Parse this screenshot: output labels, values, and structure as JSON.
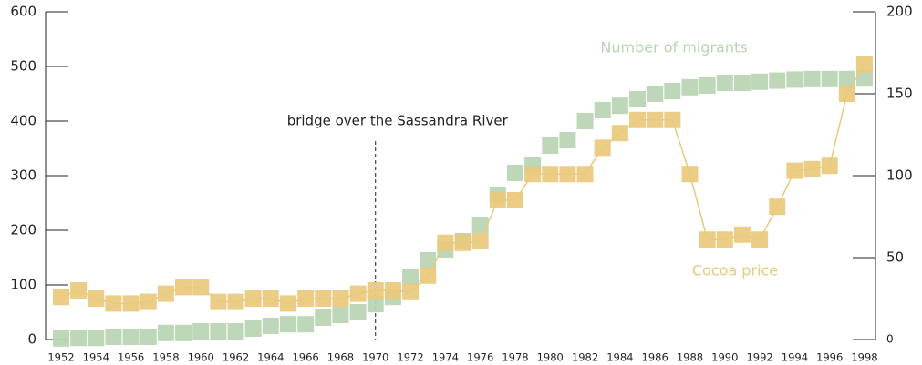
{
  "chart_data": {
    "type": "scatter",
    "x": [
      1952,
      1953,
      1954,
      1955,
      1956,
      1957,
      1958,
      1959,
      1960,
      1961,
      1962,
      1963,
      1964,
      1965,
      1966,
      1967,
      1968,
      1969,
      1970,
      1971,
      1972,
      1973,
      1974,
      1975,
      1976,
      1977,
      1978,
      1979,
      1980,
      1981,
      1982,
      1983,
      1984,
      1985,
      1986,
      1987,
      1988,
      1989,
      1990,
      1991,
      1992,
      1993,
      1994,
      1995,
      1996,
      1997,
      1998
    ],
    "xlim": [
      1952,
      1998
    ],
    "xticks": [
      1952,
      1954,
      1956,
      1958,
      1960,
      1962,
      1964,
      1966,
      1968,
      1970,
      1972,
      1974,
      1976,
      1978,
      1980,
      1982,
      1984,
      1986,
      1988,
      1990,
      1992,
      1994,
      1996,
      1998
    ],
    "ylim": [
      0,
      600
    ],
    "yticks": [
      0,
      100,
      200,
      300,
      400,
      500,
      600
    ],
    "y2lim": [
      0,
      200
    ],
    "y2ticks": [
      0,
      50,
      100,
      150,
      200
    ],
    "series": [
      {
        "name": "Number of migrants",
        "color": "#b8d4b3",
        "values": [
          2,
          3,
          3,
          5,
          5,
          5,
          12,
          12,
          15,
          15,
          15,
          20,
          25,
          28,
          28,
          40,
          45,
          50,
          65,
          78,
          115,
          145,
          165,
          180,
          210,
          265,
          305,
          320,
          355,
          365,
          400,
          420,
          428,
          440,
          450,
          455,
          462,
          465,
          470,
          470,
          472,
          474,
          476,
          477,
          477,
          477,
          478
        ]
      },
      {
        "name": "Cocoa price",
        "color": "#e9c97c",
        "axis": "y2",
        "values": [
          26,
          30,
          25,
          22,
          22,
          23,
          28,
          32,
          32,
          23,
          23,
          25,
          25,
          22,
          25,
          25,
          25,
          28,
          30,
          30,
          29,
          39,
          59,
          59,
          60,
          85,
          85,
          101,
          101,
          101,
          101,
          117,
          126,
          134,
          134,
          134,
          101,
          61,
          61,
          64,
          61,
          81,
          103,
          104,
          106,
          150,
          168
        ]
      }
    ],
    "annotations": [
      {
        "text": "bridge over the Sassandra River",
        "x": 1970
      }
    ]
  }
}
